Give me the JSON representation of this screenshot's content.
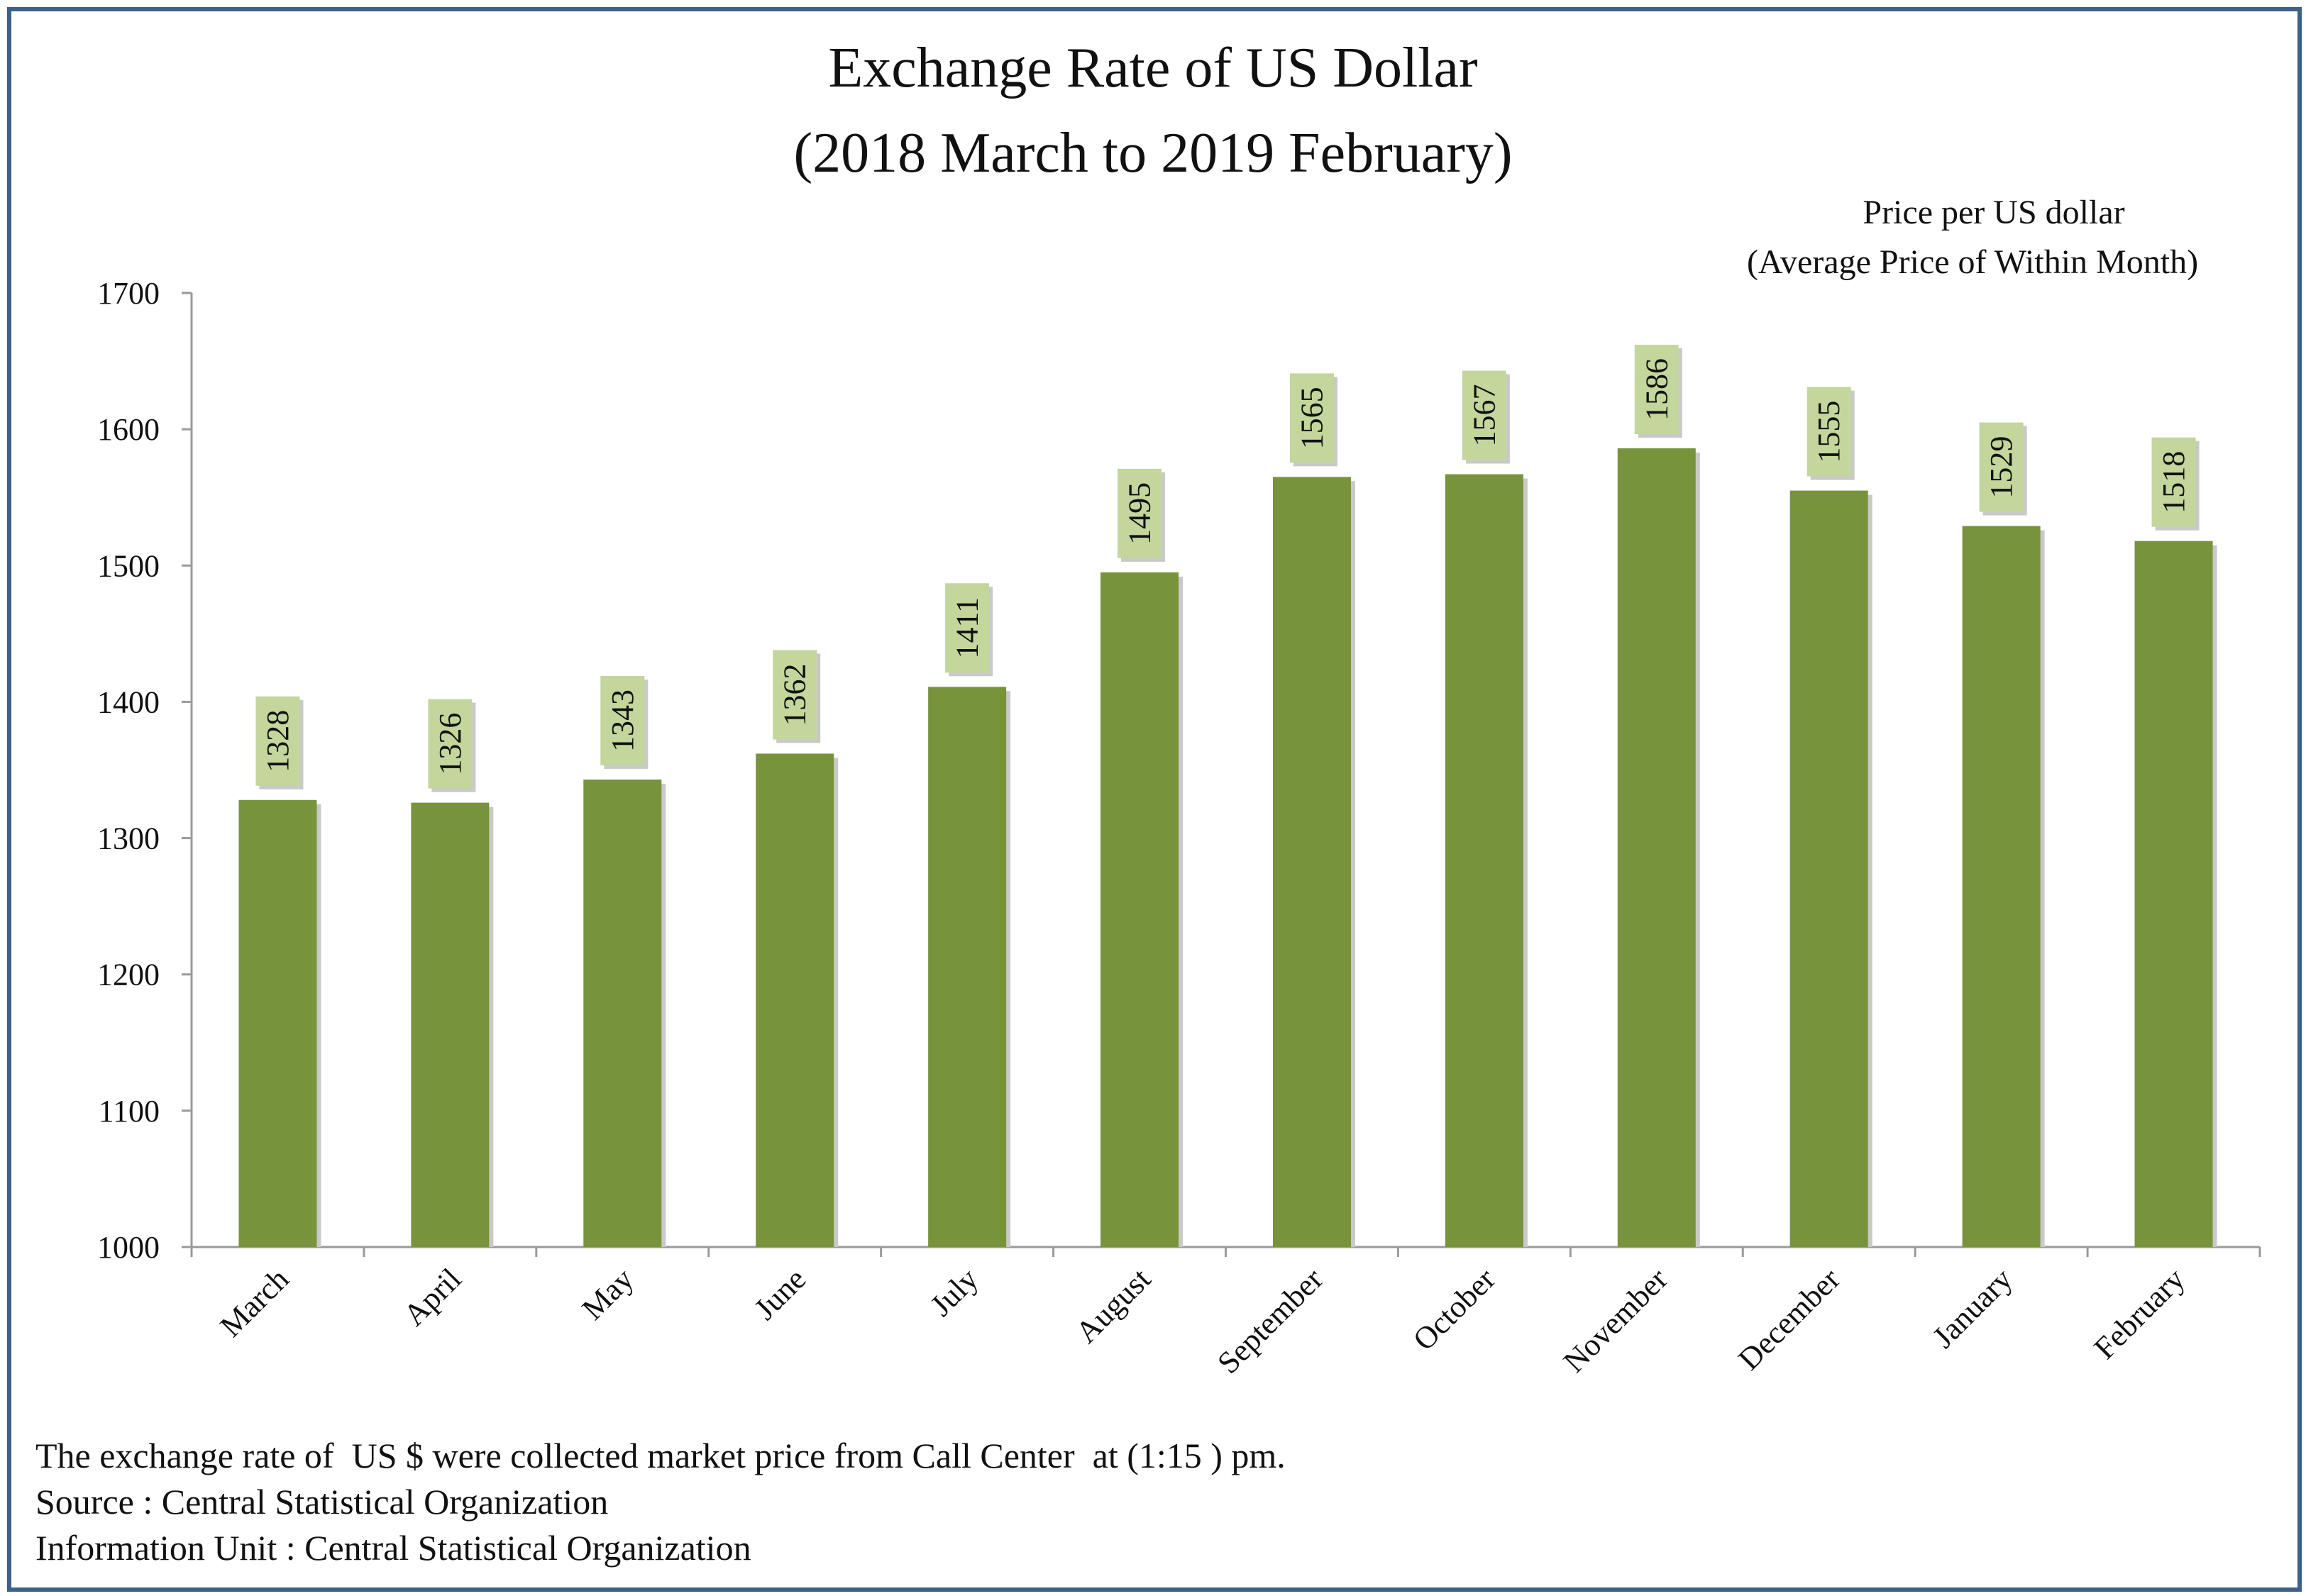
{
  "title_line1": "Exchange Rate of US Dollar",
  "title_line2": "(2018 March to 2019 February)",
  "unit_line1": "Price per US dollar",
  "unit_line2": "(Average Price of Within Month)",
  "notes": {
    "collection": "The exchange rate of  US $ were collected market price from Call Center  at (1:15 ) pm.",
    "source": "Source : Central Statistical Organization",
    "info_unit": "Information Unit : Central Statistical Organization"
  },
  "colors": {
    "bar": "#77933c",
    "bar_shadow": "#c9c9c9",
    "label_box": "#c3d69b",
    "axis": "#9a9a9a",
    "frame": "#3e5f8a"
  },
  "chart_data": {
    "type": "bar",
    "categories": [
      "March",
      "April",
      "May",
      "June",
      "July",
      "August",
      "September",
      "October",
      "November",
      "December",
      "January",
      "February"
    ],
    "series": [
      {
        "values": [
          1328,
          1326,
          1343,
          1362,
          1411,
          1495,
          1565,
          1567,
          1586,
          1555,
          1529,
          1518
        ]
      }
    ],
    "ylim": [
      1000,
      1700
    ],
    "yticks": [
      "1000",
      "1100",
      "1200",
      "1300",
      "1400",
      "1500",
      "1600",
      "1700"
    ],
    "grid": false,
    "legend": "none",
    "data_labels": "rotated, boxed, above bars",
    "xtick_rotation": "-45"
  }
}
